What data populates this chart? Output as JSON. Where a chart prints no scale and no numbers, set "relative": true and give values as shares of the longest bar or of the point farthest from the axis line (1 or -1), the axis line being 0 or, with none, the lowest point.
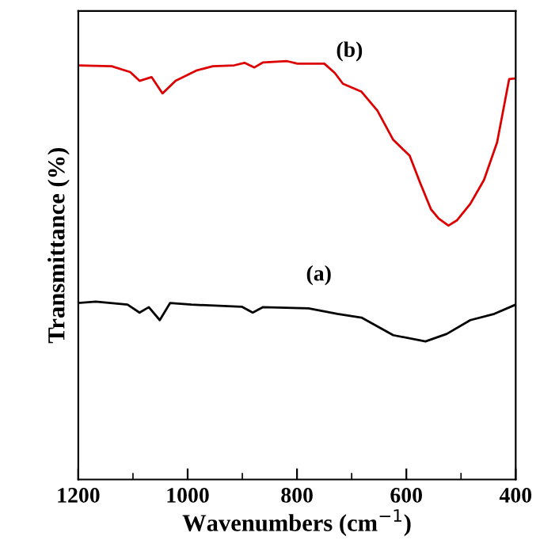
{
  "chart_data": {
    "type": "line",
    "relative": true,
    "xlabel": "Wavenumbers (cm$^{−1}$)",
    "ylabel": "Transmittance (%)",
    "xlim": [
      1200,
      400
    ],
    "xticks": [
      1200,
      1000,
      800,
      600,
      400
    ],
    "grid": false,
    "legend": false,
    "marker": "none",
    "line_style": "solid",
    "series": [
      {
        "name": "(a)",
        "color": "#000000",
        "x": [
          1200,
          1168,
          1110,
          1088,
          1071,
          1051,
          1032,
          993,
          901,
          881,
          862,
          779,
          726,
          682,
          624,
          565,
          526,
          483,
          439,
          400
        ],
        "values": [
          0.422,
          0.425,
          0.418,
          0.399,
          0.412,
          0.381,
          0.422,
          0.418,
          0.413,
          0.399,
          0.412,
          0.409,
          0.396,
          0.387,
          0.345,
          0.33,
          0.348,
          0.381,
          0.396,
          0.418
        ]
      },
      {
        "name": "(b)",
        "color": "#dd0000",
        "x": [
          1200,
          1139,
          1105,
          1088,
          1066,
          1046,
          1022,
          983,
          954,
          915,
          896,
          878,
          862,
          818,
          799,
          750,
          731,
          716,
          682,
          653,
          624,
          594,
          575,
          555,
          541,
          523,
          507,
          483,
          458,
          434,
          412,
          400
        ],
        "values": [
          0.99,
          0.988,
          0.974,
          0.953,
          0.962,
          0.923,
          0.953,
          0.978,
          0.988,
          0.99,
          0.996,
          0.985,
          0.997,
          1.0,
          0.994,
          0.994,
          0.972,
          0.946,
          0.927,
          0.882,
          0.812,
          0.774,
          0.71,
          0.646,
          0.624,
          0.607,
          0.62,
          0.659,
          0.716,
          0.806,
          0.957,
          0.959
        ]
      }
    ]
  }
}
